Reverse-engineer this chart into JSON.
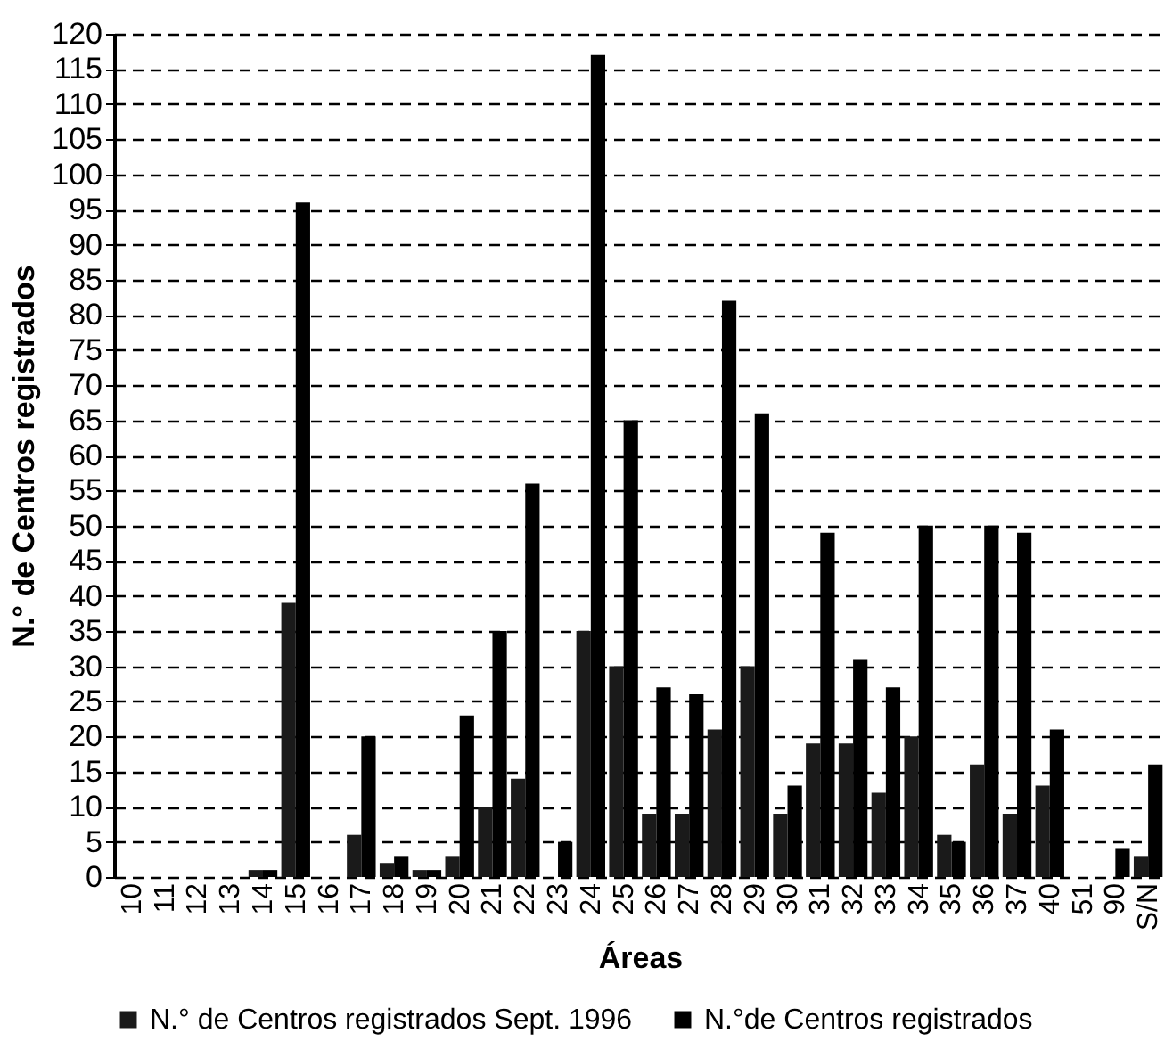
{
  "chart_data": {
    "type": "bar",
    "xlabel": "Áreas",
    "ylabel": "N.° de Centros registrados",
    "categories": [
      "10",
      "11",
      "12",
      "13",
      "14",
      "15",
      "16",
      "17",
      "18",
      "19",
      "20",
      "21",
      "22",
      "23",
      "24",
      "25",
      "26",
      "27",
      "28",
      "29",
      "30",
      "31",
      "32",
      "33",
      "34",
      "35",
      "36",
      "37",
      "40",
      "51",
      "90",
      "S/N"
    ],
    "series": [
      {
        "name": "N.° de Centros registrados Sept. 1996",
        "color": "#1a1a1a",
        "values": [
          0,
          0,
          0,
          0,
          1,
          39,
          0,
          6,
          2,
          1,
          3,
          10,
          14,
          0,
          35,
          30,
          9,
          9,
          21,
          30,
          9,
          19,
          19,
          12,
          20,
          6,
          16,
          9,
          13,
          0,
          0,
          3
        ]
      },
      {
        "name": "N.°de Centros registrados",
        "color": "#000000",
        "values": [
          0,
          0,
          0,
          0,
          1,
          96,
          0,
          20,
          3,
          1,
          23,
          35,
          56,
          5,
          117,
          65,
          27,
          26,
          82,
          66,
          13,
          49,
          31,
          27,
          50,
          5,
          50,
          49,
          21,
          0,
          4,
          16
        ]
      }
    ],
    "ylim": [
      0,
      120
    ],
    "yticks": [
      0,
      5,
      10,
      15,
      20,
      25,
      30,
      35,
      40,
      45,
      50,
      55,
      60,
      65,
      70,
      75,
      80,
      85,
      90,
      95,
      100,
      105,
      110,
      115,
      120
    ],
    "grid": "y",
    "legend": "bottom"
  }
}
